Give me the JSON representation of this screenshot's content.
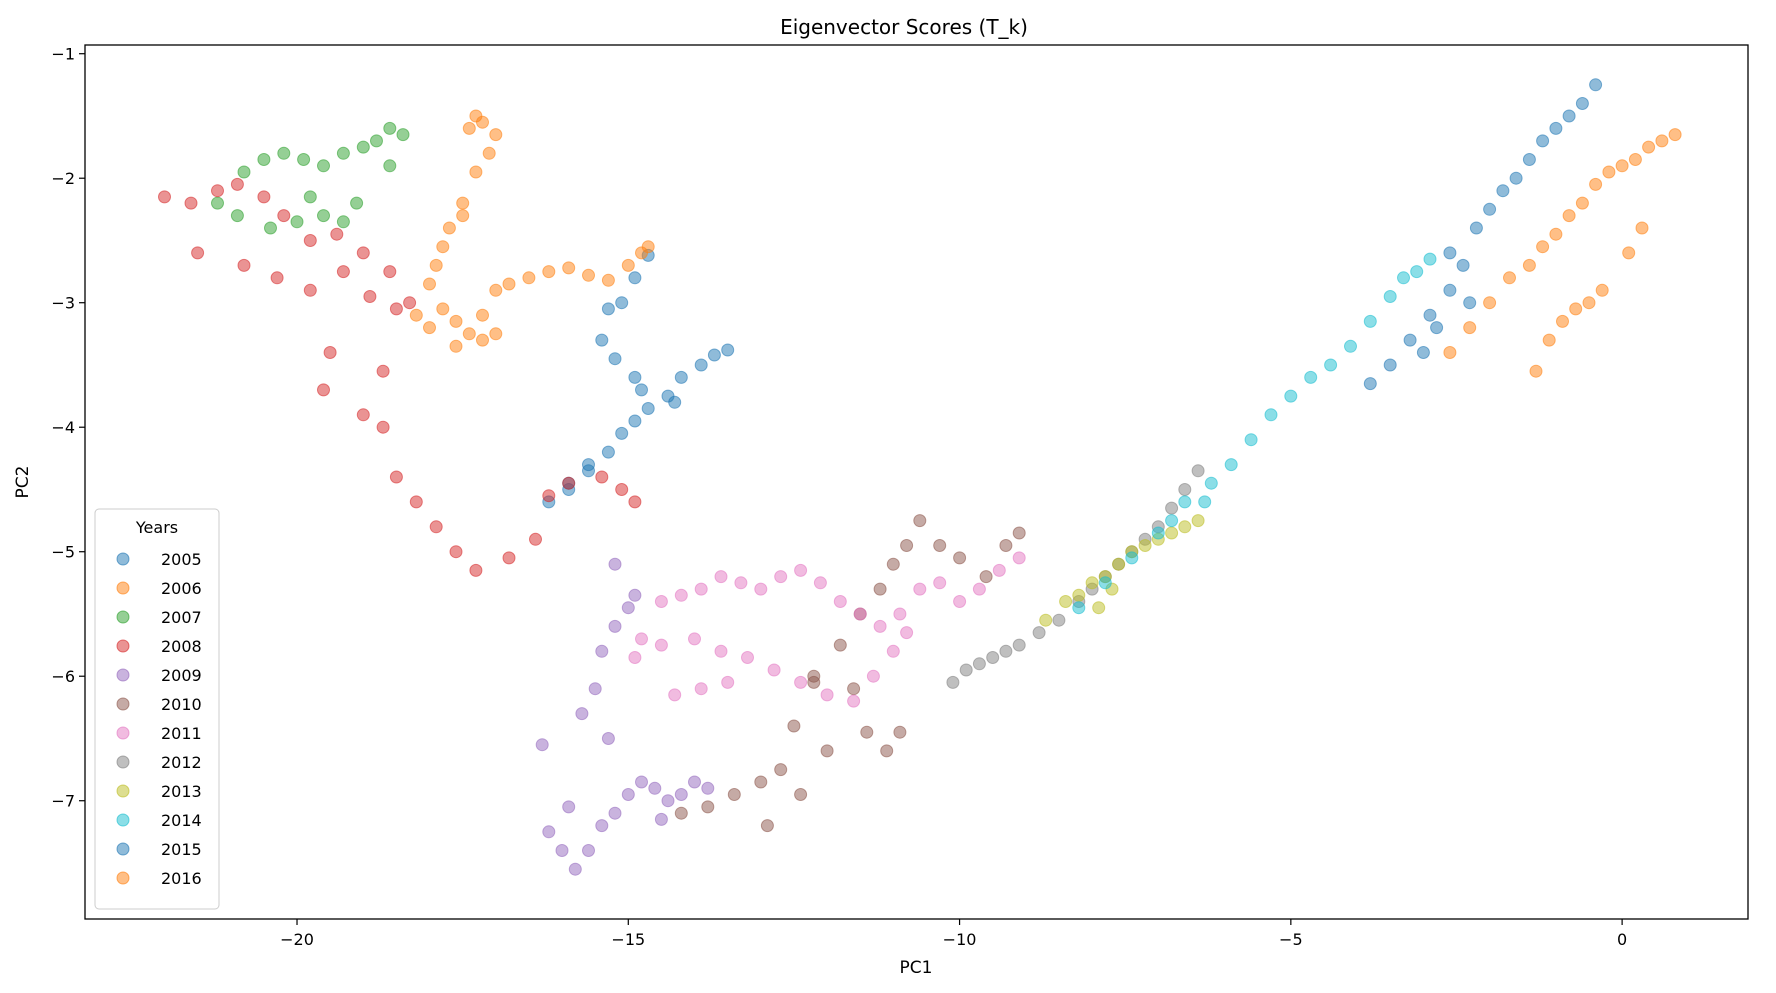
{
  "chart_data": {
    "type": "scatter",
    "title": "Eigenvector Scores (T_k)",
    "xlabel": "PC1",
    "ylabel": "PC2",
    "xlim": [
      -23.2,
      1.9
    ],
    "ylim": [
      -7.95,
      -0.93
    ],
    "xticks": [
      -20,
      -15,
      -10,
      -5,
      0
    ],
    "yticks": [
      -7,
      -6,
      -5,
      -4,
      -3,
      -2,
      -1
    ],
    "xtick_labels": [
      "−20",
      "−15",
      "−10",
      "−5",
      "0"
    ],
    "ytick_labels": [
      "−7",
      "−6",
      "−5",
      "−4",
      "−3",
      "−2",
      "−1"
    ],
    "grid": false,
    "legend": {
      "title": "Years",
      "placement": "lower-left"
    },
    "series": [
      {
        "name": "2005",
        "color": "#1f77b4",
        "x": [
          -16.2,
          -15.9,
          -15.6,
          -15.3,
          -15.1,
          -14.9,
          -14.7,
          -14.4,
          -14.2,
          -13.9,
          -13.7,
          -13.5,
          -14.3,
          -14.8,
          -15.2,
          -15.4,
          -15.3,
          -15.1,
          -14.9,
          -14.7,
          -14.9,
          -15.6,
          -15.9
        ],
        "y": [
          -4.6,
          -4.45,
          -4.35,
          -4.2,
          -4.05,
          -3.95,
          -3.85,
          -3.75,
          -3.6,
          -3.5,
          -3.42,
          -3.38,
          -3.8,
          -3.7,
          -3.45,
          -3.3,
          -3.05,
          -3.0,
          -2.8,
          -2.62,
          -3.6,
          -4.3,
          -4.5
        ]
      },
      {
        "name": "2006",
        "color": "#ff7f0e",
        "x": [
          -18.2,
          -18.0,
          -17.8,
          -17.6,
          -17.4,
          -17.2,
          -17.0,
          -16.8,
          -16.5,
          -16.2,
          -15.9,
          -15.6,
          -15.3,
          -15.0,
          -14.8,
          -14.7,
          -17.4,
          -17.3,
          -17.2,
          -17.0,
          -17.1,
          -17.3,
          -17.5,
          -17.7,
          -17.8,
          -17.9,
          -18.0,
          -17.6,
          -17.2,
          -17.0,
          -17.5
        ],
        "y": [
          -3.1,
          -3.2,
          -3.05,
          -3.15,
          -3.25,
          -3.1,
          -2.9,
          -2.85,
          -2.8,
          -2.75,
          -2.72,
          -2.78,
          -2.82,
          -2.7,
          -2.6,
          -2.55,
          -1.6,
          -1.5,
          -1.55,
          -1.65,
          -1.8,
          -1.95,
          -2.2,
          -2.4,
          -2.55,
          -2.7,
          -2.85,
          -3.35,
          -3.3,
          -3.25,
          -2.3
        ]
      },
      {
        "name": "2007",
        "color": "#2ca02c",
        "x": [
          -21.2,
          -20.8,
          -20.5,
          -20.2,
          -19.9,
          -19.6,
          -19.3,
          -19.0,
          -18.8,
          -18.6,
          -18.4,
          -18.6,
          -19.1,
          -19.6,
          -20.0,
          -20.4,
          -20.9,
          -19.3,
          -19.8
        ],
        "y": [
          -2.2,
          -1.95,
          -1.85,
          -1.8,
          -1.85,
          -1.9,
          -1.8,
          -1.75,
          -1.7,
          -1.6,
          -1.65,
          -1.9,
          -2.2,
          -2.3,
          -2.35,
          -2.4,
          -2.3,
          -2.35,
          -2.15
        ]
      },
      {
        "name": "2008",
        "color": "#d62728",
        "x": [
          -22.0,
          -21.6,
          -21.2,
          -20.9,
          -20.5,
          -20.2,
          -19.8,
          -19.4,
          -19.0,
          -18.6,
          -18.3,
          -20.8,
          -20.3,
          -19.8,
          -19.3,
          -18.9,
          -18.5,
          -19.6,
          -19.0,
          -18.7,
          -18.5,
          -18.2,
          -17.9,
          -17.6,
          -17.3,
          -16.8,
          -16.4,
          -16.2,
          -15.9,
          -15.4,
          -15.1,
          -14.9,
          -21.5,
          -19.5,
          -18.7
        ],
        "y": [
          -2.15,
          -2.2,
          -2.1,
          -2.05,
          -2.15,
          -2.3,
          -2.5,
          -2.45,
          -2.6,
          -2.75,
          -3.0,
          -2.7,
          -2.8,
          -2.9,
          -2.75,
          -2.95,
          -3.05,
          -3.7,
          -3.9,
          -4.0,
          -4.4,
          -4.6,
          -4.8,
          -5.0,
          -5.15,
          -5.05,
          -4.9,
          -4.55,
          -4.45,
          -4.4,
          -4.5,
          -4.6,
          -2.6,
          -3.4,
          -3.55
        ]
      },
      {
        "name": "2009",
        "color": "#9467bd",
        "x": [
          -16.2,
          -16.0,
          -15.8,
          -15.6,
          -15.4,
          -15.2,
          -15.0,
          -14.8,
          -14.6,
          -14.4,
          -14.2,
          -14.0,
          -13.8,
          -15.3,
          -15.5,
          -15.4,
          -15.2,
          -15.0,
          -14.9,
          -15.7,
          -16.3,
          -15.9,
          -14.5,
          -15.2
        ],
        "y": [
          -7.25,
          -7.4,
          -7.55,
          -7.4,
          -7.2,
          -7.1,
          -6.95,
          -6.85,
          -6.9,
          -7.0,
          -6.95,
          -6.85,
          -6.9,
          -6.5,
          -6.1,
          -5.8,
          -5.6,
          -5.45,
          -5.35,
          -6.3,
          -6.55,
          -7.05,
          -7.15,
          -5.1
        ]
      },
      {
        "name": "2010",
        "color": "#8c564b",
        "x": [
          -14.2,
          -13.8,
          -13.4,
          -13.0,
          -12.7,
          -12.5,
          -12.2,
          -11.8,
          -11.5,
          -11.2,
          -11.0,
          -10.8,
          -10.6,
          -10.3,
          -10.0,
          -9.6,
          -9.3,
          -9.1,
          -12.9,
          -12.4,
          -12.0,
          -11.4,
          -11.1,
          -10.9,
          -11.6,
          -12.2
        ],
        "y": [
          -7.1,
          -7.05,
          -6.95,
          -6.85,
          -6.75,
          -6.4,
          -6.05,
          -5.75,
          -5.5,
          -5.3,
          -5.1,
          -4.95,
          -4.75,
          -4.95,
          -5.05,
          -5.2,
          -4.95,
          -4.85,
          -7.2,
          -6.95,
          -6.6,
          -6.45,
          -6.6,
          -6.45,
          -6.1,
          -6.0
        ]
      },
      {
        "name": "2011",
        "color": "#e377c2",
        "x": [
          -14.8,
          -14.5,
          -14.2,
          -13.9,
          -13.6,
          -13.3,
          -13.0,
          -12.7,
          -12.4,
          -12.1,
          -11.8,
          -11.5,
          -11.2,
          -10.9,
          -10.6,
          -10.3,
          -10.0,
          -9.7,
          -9.4,
          -9.1,
          -14.9,
          -14.5,
          -14.0,
          -13.6,
          -13.2,
          -12.8,
          -12.4,
          -12.0,
          -11.6,
          -11.3,
          -11.0,
          -14.3,
          -13.9,
          -13.5,
          -10.8
        ],
        "y": [
          -5.7,
          -5.4,
          -5.35,
          -5.3,
          -5.2,
          -5.25,
          -5.3,
          -5.2,
          -5.15,
          -5.25,
          -5.4,
          -5.5,
          -5.6,
          -5.5,
          -5.3,
          -5.25,
          -5.4,
          -5.3,
          -5.15,
          -5.05,
          -5.85,
          -5.75,
          -5.7,
          -5.8,
          -5.85,
          -5.95,
          -6.05,
          -6.15,
          -6.2,
          -6.0,
          -5.8,
          -6.15,
          -6.1,
          -6.05,
          -5.65
        ]
      },
      {
        "name": "2012",
        "color": "#7f7f7f",
        "x": [
          -10.1,
          -9.9,
          -9.7,
          -9.5,
          -9.3,
          -9.1,
          -8.8,
          -8.5,
          -8.2,
          -8.0,
          -7.8,
          -7.6,
          -7.4,
          -7.2,
          -7.0,
          -6.8,
          -6.6,
          -6.4
        ],
        "y": [
          -6.05,
          -5.95,
          -5.9,
          -5.85,
          -5.8,
          -5.75,
          -5.65,
          -5.55,
          -5.4,
          -5.3,
          -5.2,
          -5.1,
          -5.0,
          -4.9,
          -4.8,
          -4.65,
          -4.5,
          -4.35
        ]
      },
      {
        "name": "2013",
        "color": "#bcbd22",
        "x": [
          -8.7,
          -8.4,
          -8.2,
          -8.0,
          -7.8,
          -7.6,
          -7.4,
          -7.2,
          -7.0,
          -6.8,
          -6.6,
          -6.4,
          -7.9,
          -7.7
        ],
        "y": [
          -5.55,
          -5.4,
          -5.35,
          -5.25,
          -5.2,
          -5.1,
          -5.0,
          -4.95,
          -4.9,
          -4.85,
          -4.8,
          -4.75,
          -5.45,
          -5.3
        ]
      },
      {
        "name": "2014",
        "color": "#17becf",
        "x": [
          -8.2,
          -7.8,
          -7.4,
          -7.0,
          -6.6,
          -6.2,
          -5.9,
          -5.6,
          -5.3,
          -5.0,
          -4.7,
          -4.4,
          -4.1,
          -3.8,
          -3.5,
          -3.3,
          -3.1,
          -2.9,
          -6.8,
          -6.3
        ],
        "y": [
          -5.45,
          -5.25,
          -5.05,
          -4.85,
          -4.6,
          -4.45,
          -4.3,
          -4.1,
          -3.9,
          -3.75,
          -3.6,
          -3.5,
          -3.35,
          -3.15,
          -2.95,
          -2.8,
          -2.75,
          -2.65,
          -4.75,
          -4.6
        ]
      },
      {
        "name": "2015",
        "color": "#1f77b4",
        "x": [
          -3.8,
          -3.5,
          -3.2,
          -2.9,
          -2.6,
          -2.4,
          -2.2,
          -2.0,
          -1.8,
          -1.6,
          -1.4,
          -1.2,
          -1.0,
          -0.8,
          -0.6,
          -0.4,
          -3.0,
          -2.8,
          -2.6,
          -2.3
        ],
        "y": [
          -3.65,
          -3.5,
          -3.3,
          -3.1,
          -2.9,
          -2.7,
          -2.4,
          -2.25,
          -2.1,
          -2.0,
          -1.85,
          -1.7,
          -1.6,
          -1.5,
          -1.4,
          -1.25,
          -3.4,
          -3.2,
          -2.6,
          -3.0
        ]
      },
      {
        "name": "2016",
        "color": "#ff7f0e",
        "x": [
          -2.6,
          -2.3,
          -2.0,
          -1.7,
          -1.4,
          -1.2,
          -1.0,
          -0.8,
          -0.6,
          -0.4,
          -0.2,
          0.0,
          0.2,
          0.4,
          0.6,
          0.8,
          -1.3,
          -1.1,
          -0.9,
          -0.7,
          -0.5,
          -0.3,
          0.1,
          0.3
        ],
        "y": [
          -3.4,
          -3.2,
          -3.0,
          -2.8,
          -2.7,
          -2.55,
          -2.45,
          -2.3,
          -2.2,
          -2.05,
          -1.95,
          -1.9,
          -1.85,
          -1.75,
          -1.7,
          -1.65,
          -3.55,
          -3.3,
          -3.15,
          -3.05,
          -3.0,
          -2.9,
          -2.6,
          -2.4
        ]
      }
    ]
  }
}
